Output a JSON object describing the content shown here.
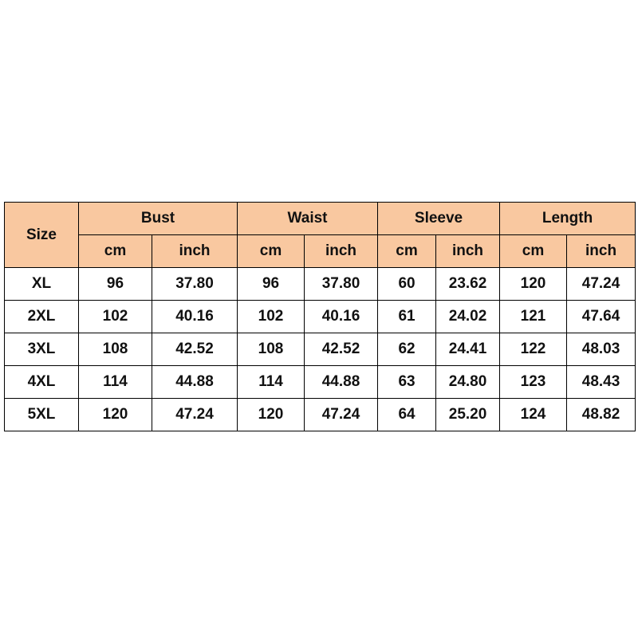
{
  "table": {
    "corner": "Size",
    "groups": [
      {
        "label": "Bust",
        "units": [
          "cm",
          "inch"
        ]
      },
      {
        "label": "Waist",
        "units": [
          "cm",
          "inch"
        ]
      },
      {
        "label": "Sleeve",
        "units": [
          "cm",
          "inch"
        ]
      },
      {
        "label": "Length",
        "units": [
          "cm",
          "inch"
        ]
      }
    ],
    "rows": [
      [
        "XL",
        "96",
        "37.80",
        "96",
        "37.80",
        "60",
        "23.62",
        "120",
        "47.24"
      ],
      [
        "2XL",
        "102",
        "40.16",
        "102",
        "40.16",
        "61",
        "24.02",
        "121",
        "47.64"
      ],
      [
        "3XL",
        "108",
        "42.52",
        "108",
        "42.52",
        "62",
        "24.41",
        "122",
        "48.03"
      ],
      [
        "4XL",
        "114",
        "44.88",
        "114",
        "44.88",
        "63",
        "24.80",
        "123",
        "48.43"
      ],
      [
        "5XL",
        "120",
        "47.24",
        "120",
        "47.24",
        "64",
        "25.20",
        "124",
        "48.82"
      ]
    ]
  }
}
